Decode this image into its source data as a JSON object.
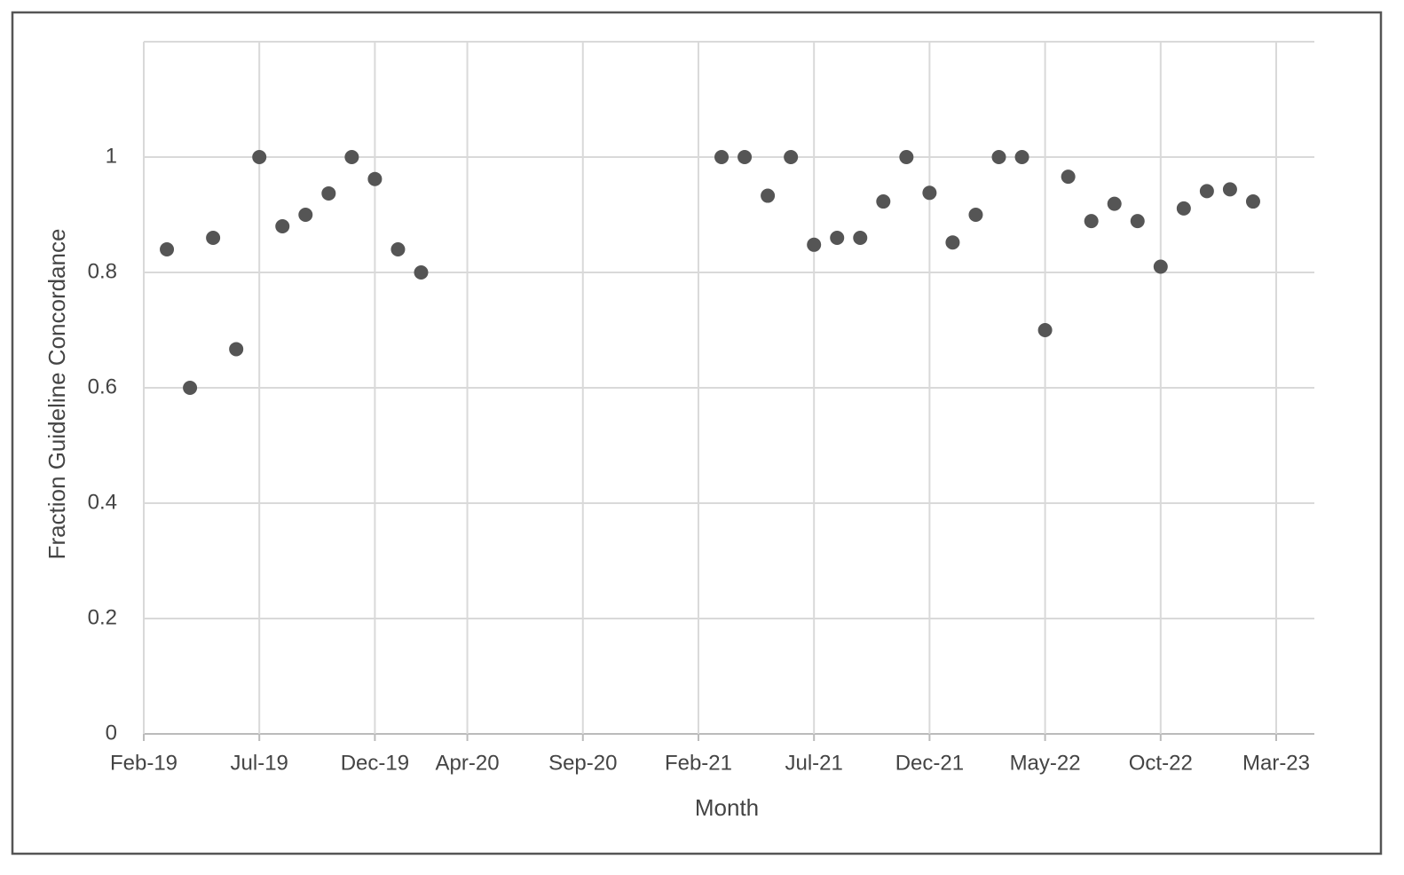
{
  "chart_data": {
    "type": "scatter",
    "x_label": "Month",
    "y_label": "Fraction Guideline Concordance",
    "x": [
      "Mar-19",
      "Apr-19",
      "May-19",
      "Jun-19",
      "Jul-19",
      "Aug-19",
      "Sep-19",
      "Oct-19",
      "Nov-19",
      "Dec-19",
      "Jan-20",
      "Feb-20",
      "Mar-21",
      "Apr-21",
      "May-21",
      "Jun-21",
      "Jul-21",
      "Aug-21",
      "Sep-21",
      "Oct-21",
      "Nov-21",
      "Dec-21",
      "Jan-22",
      "Feb-22",
      "Mar-22",
      "Apr-22",
      "May-22",
      "Jun-22",
      "Jul-22",
      "Aug-22",
      "Sep-22",
      "Oct-22",
      "Nov-22",
      "Dec-22",
      "Jan-23",
      "Feb-23"
    ],
    "values": [
      0.84,
      0.6,
      0.86,
      0.667,
      1.0,
      0.88,
      0.9,
      0.937,
      1.0,
      0.962,
      0.84,
      0.8,
      1.0,
      1.0,
      0.933,
      1.0,
      0.848,
      0.86,
      0.86,
      0.923,
      1.0,
      0.938,
      0.852,
      0.9,
      1.0,
      1.0,
      0.7,
      0.966,
      0.889,
      0.919,
      0.889,
      0.81,
      0.911,
      0.941,
      0.944,
      0.923
    ],
    "color": "#555555",
    "xlim": [
      "Feb-19",
      "Mar-23"
    ],
    "xticks": [
      "Feb-19",
      "Jul-19",
      "Dec-19",
      "Apr-20",
      "Sep-20",
      "Feb-21",
      "Jul-21",
      "Dec-21",
      "May-22",
      "Oct-22",
      "Mar-23"
    ],
    "ylim": [
      0,
      1.2
    ],
    "yticks": [
      0,
      0.2,
      0.4,
      0.6,
      0.8,
      1
    ],
    "grid": true
  }
}
